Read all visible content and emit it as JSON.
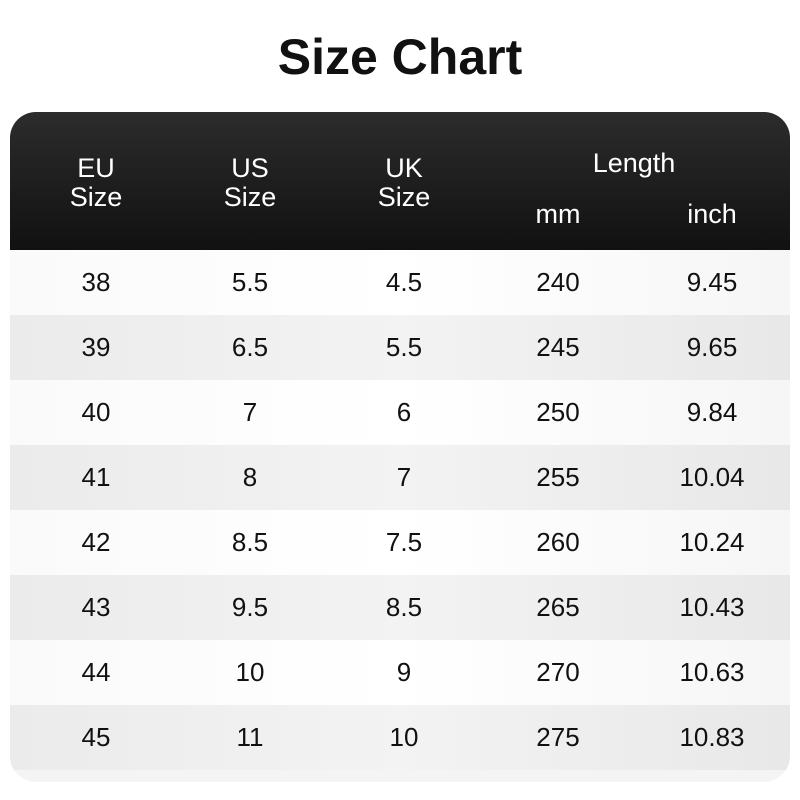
{
  "title": "Size Chart",
  "headers": {
    "eu": [
      "EU",
      "Size"
    ],
    "us": [
      "US",
      "Size"
    ],
    "uk": [
      "UK",
      "Size"
    ],
    "length": "Length",
    "mm": "mm",
    "inch": "inch"
  },
  "rows": [
    [
      "38",
      "5.5",
      "4.5",
      "240",
      "9.45"
    ],
    [
      "39",
      "6.5",
      "5.5",
      "245",
      "9.65"
    ],
    [
      "40",
      "7",
      "6",
      "250",
      "9.84"
    ],
    [
      "41",
      "8",
      "7",
      "255",
      "10.04"
    ],
    [
      "42",
      "8.5",
      "7.5",
      "260",
      "10.24"
    ],
    [
      "43",
      "9.5",
      "8.5",
      "265",
      "10.43"
    ],
    [
      "44",
      "10",
      "9",
      "270",
      "10.63"
    ],
    [
      "45",
      "11",
      "10",
      "275",
      "10.83"
    ]
  ]
}
